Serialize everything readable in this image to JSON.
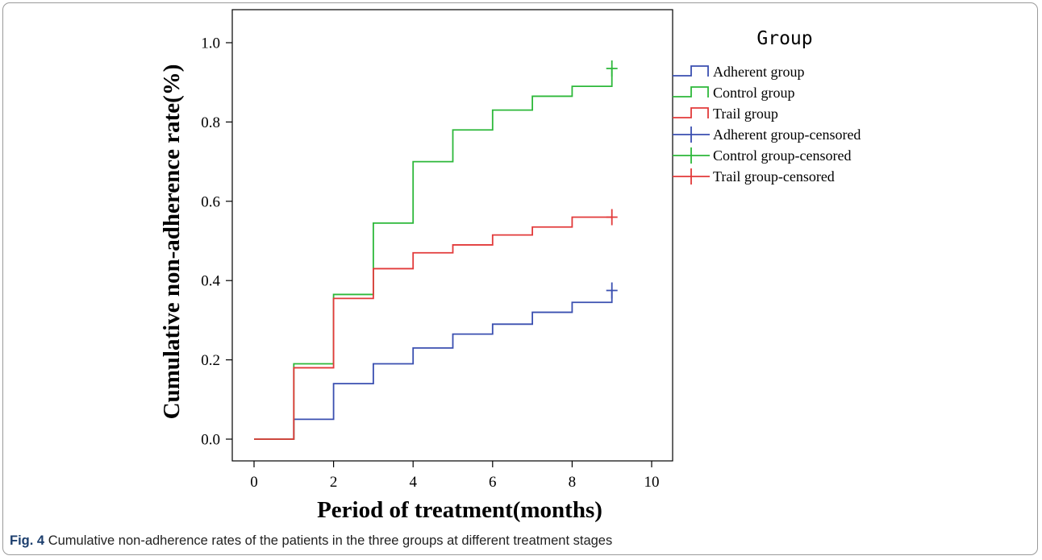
{
  "caption": {
    "label": "Fig. 4",
    "text": "Cumulative non-adherence rates of the patients in the three groups at different treatment stages"
  },
  "chart_data": {
    "type": "line",
    "step": true,
    "title": "",
    "xlabel": "Period of treatment(months)",
    "ylabel": "Cumulative non-adherence rate(%)",
    "xlim": [
      0,
      10
    ],
    "ylim": [
      0,
      1.0
    ],
    "xticks": [
      "0",
      "2",
      "4",
      "6",
      "8",
      "10"
    ],
    "yticks": [
      "0.0",
      "0.2",
      "0.4",
      "0.6",
      "0.8",
      "1.0"
    ],
    "grid": false,
    "legend": {
      "title": "Group",
      "placement": "right",
      "entries": [
        {
          "label": "Adherent group",
          "color": "#3a4fb0",
          "marker": "step"
        },
        {
          "label": "Control group",
          "color": "#2db83a",
          "marker": "step"
        },
        {
          "label": "Trail group",
          "color": "#e23a3a",
          "marker": "step"
        },
        {
          "label": "Adherent group-censored",
          "color": "#3a4fb0",
          "marker": "cross"
        },
        {
          "label": "Control group-censored",
          "color": "#2db83a",
          "marker": "cross"
        },
        {
          "label": "Trail group-censored",
          "color": "#e23a3a",
          "marker": "cross"
        }
      ]
    },
    "series": [
      {
        "name": "Adherent group",
        "color": "#3a4fb0",
        "x": [
          0,
          1,
          2,
          3,
          4,
          5,
          6,
          7,
          8,
          9
        ],
        "y": [
          0.0,
          0.05,
          0.14,
          0.19,
          0.23,
          0.265,
          0.29,
          0.32,
          0.345,
          0.375
        ],
        "censored": [
          {
            "x": 9,
            "y": 0.375
          }
        ]
      },
      {
        "name": "Control group",
        "color": "#2db83a",
        "x": [
          0,
          1,
          2,
          3,
          4,
          5,
          6,
          7,
          8,
          9
        ],
        "y": [
          0.0,
          0.19,
          0.365,
          0.545,
          0.7,
          0.78,
          0.83,
          0.865,
          0.89,
          0.935
        ],
        "censored": [
          {
            "x": 9,
            "y": 0.935
          }
        ]
      },
      {
        "name": "Trail group",
        "color": "#e23a3a",
        "x": [
          0,
          1,
          2,
          3,
          4,
          5,
          6,
          7,
          8,
          9
        ],
        "y": [
          0.0,
          0.18,
          0.355,
          0.43,
          0.47,
          0.49,
          0.515,
          0.535,
          0.56,
          0.56
        ],
        "censored": [
          {
            "x": 9,
            "y": 0.56
          }
        ]
      }
    ]
  }
}
